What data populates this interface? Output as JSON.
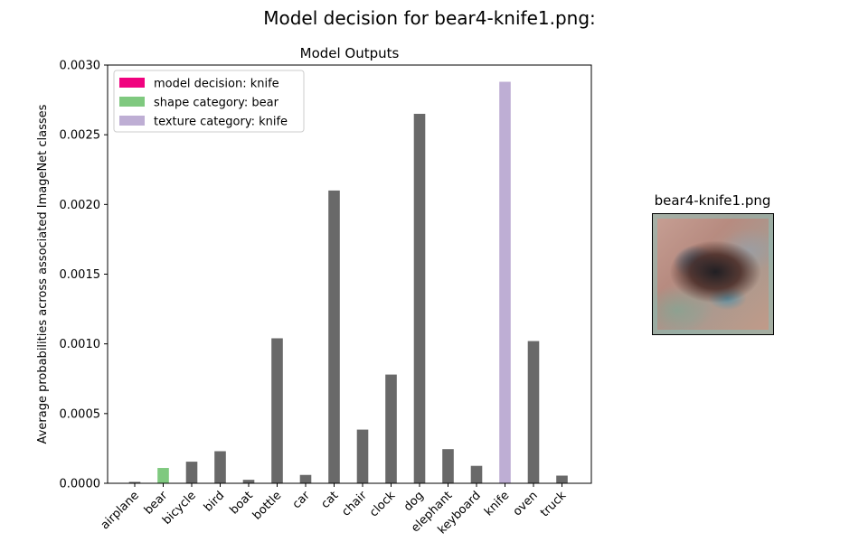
{
  "suptitle": "Model decision for bear4-knife1.png:",
  "thumbnail": {
    "title": "bear4-knife1.png"
  },
  "chart_data": {
    "type": "bar",
    "title": "Model Outputs",
    "xlabel": "",
    "ylabel": "Average probabilities across associated ImageNet classes",
    "categories": [
      "airplane",
      "bear",
      "bicycle",
      "bird",
      "boat",
      "bottle",
      "car",
      "cat",
      "chair",
      "clock",
      "dog",
      "elephant",
      "keyboard",
      "knife",
      "oven",
      "truck"
    ],
    "values": [
      1e-05,
      0.00011,
      0.000155,
      0.00023,
      2.5e-05,
      0.00104,
      6e-05,
      0.0021,
      0.000385,
      0.00078,
      0.00265,
      0.000245,
      0.000125,
      0.00288,
      0.00102,
      5.5e-05
    ],
    "bar_colors": [
      "#696969",
      "#7fc97f",
      "#696969",
      "#696969",
      "#696969",
      "#696969",
      "#696969",
      "#696969",
      "#696969",
      "#696969",
      "#696969",
      "#696969",
      "#696969",
      "#beaed4",
      "#696969",
      "#696969"
    ],
    "ylim": [
      0,
      0.003
    ],
    "yticks": [
      "0.0000",
      "0.0005",
      "0.0010",
      "0.0015",
      "0.0020",
      "0.0025",
      "0.0030"
    ],
    "grid": false,
    "legend": {
      "position": "top-left",
      "entries": [
        {
          "label": "model decision: knife",
          "color": "#f0027f"
        },
        {
          "label": "shape category: bear",
          "color": "#7fc97f"
        },
        {
          "label": "texture category: knife",
          "color": "#beaed4"
        }
      ]
    }
  }
}
